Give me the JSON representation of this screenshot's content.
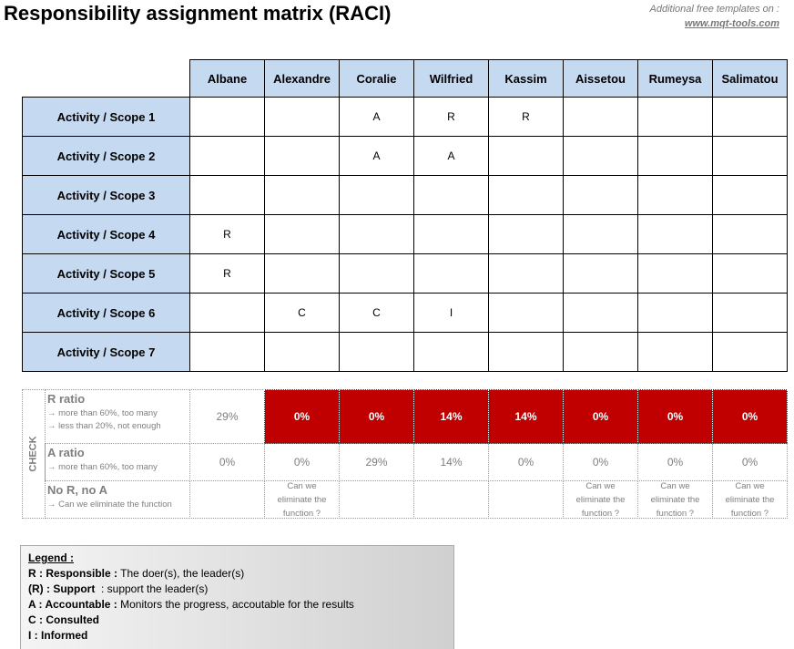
{
  "header": {
    "title": "Responsibility assignment matrix (RACI)",
    "promo": "Additional free templates on :",
    "link": "www.mqt-tools.com"
  },
  "matrix": {
    "columns": [
      "Albane",
      "Alexandre",
      "Coralie",
      "Wilfried",
      "Kassim",
      "Aissetou",
      "Rumeysa",
      "Salimatou"
    ],
    "rows": [
      {
        "label": "Activity / Scope 1",
        "cells": [
          null,
          null,
          "A",
          "R",
          "R",
          null,
          null,
          null
        ]
      },
      {
        "label": "Activity / Scope 2",
        "cells": [
          null,
          null,
          "A",
          "A",
          null,
          null,
          null,
          null
        ]
      },
      {
        "label": "Activity / Scope 3",
        "cells": [
          null,
          null,
          null,
          null,
          null,
          null,
          null,
          null
        ]
      },
      {
        "label": "Activity / Scope 4",
        "cells": [
          "R",
          null,
          null,
          null,
          null,
          null,
          null,
          null
        ]
      },
      {
        "label": "Activity / Scope 5",
        "cells": [
          "R",
          null,
          null,
          null,
          null,
          null,
          null,
          null
        ]
      },
      {
        "label": "Activity / Scope 6",
        "cells": [
          null,
          "C",
          "C",
          "I",
          null,
          null,
          null,
          null
        ]
      },
      {
        "label": "Activity / Scope 7",
        "cells": [
          null,
          null,
          null,
          null,
          null,
          null,
          null,
          null
        ]
      }
    ]
  },
  "check": {
    "label": "CHECK",
    "rows": [
      {
        "title": "R ratio",
        "notes": [
          "→ more than 60%, too many",
          "→ less than 20%, not enough"
        ],
        "cells": [
          "29%",
          "0%",
          "0%",
          "14%",
          "14%",
          "0%",
          "0%",
          "0%"
        ],
        "flagged": [
          false,
          true,
          true,
          true,
          true,
          true,
          true,
          true
        ]
      },
      {
        "title": "A ratio",
        "notes": [
          "→ more than 60%, too many"
        ],
        "cells": [
          "0%",
          "0%",
          "29%",
          "14%",
          "0%",
          "0%",
          "0%",
          "0%"
        ],
        "flagged": [
          false,
          false,
          false,
          false,
          false,
          false,
          false,
          false
        ]
      },
      {
        "title": "No R, no A",
        "notes": [
          "→ Can we eliminate the function"
        ],
        "cells": [
          null,
          "Can we eliminate the function ?",
          null,
          null,
          null,
          "Can we eliminate the function ?",
          "Can we eliminate the function ?",
          "Can we eliminate the function ?"
        ],
        "flagged": [
          false,
          false,
          false,
          false,
          false,
          false,
          false,
          false
        ]
      }
    ]
  },
  "legend": {
    "title": "Legend :",
    "items": [
      {
        "key": "R : Responsible :",
        "text": " The doer(s), the leader(s)"
      },
      {
        "key": "(R) : Support",
        "text": "  : support the leader(s)"
      },
      {
        "key": "A : Accountable :",
        "text": " Monitors the progress, accoutable for the results"
      },
      {
        "key": "C : Consulted",
        "text": null
      },
      {
        "key": "I : Informed",
        "text": null
      }
    ]
  }
}
